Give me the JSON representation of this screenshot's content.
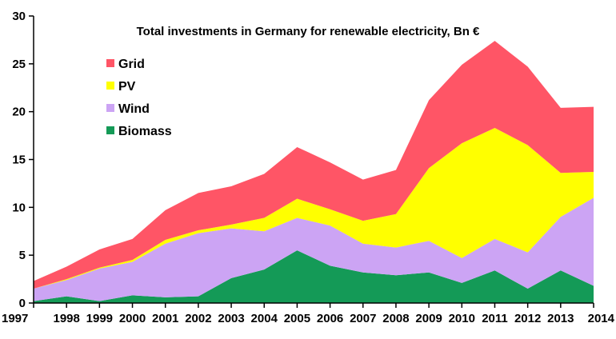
{
  "chart_data": {
    "type": "area",
    "stacked": true,
    "title": "Total investments in Germany for renewable electricity, Bn €",
    "x": [
      "1997",
      "1998",
      "1999",
      "2000",
      "2001",
      "2002",
      "2003",
      "2004",
      "2005",
      "2006",
      "2007",
      "2008",
      "2009",
      "2010",
      "2011",
      "2012",
      "2013",
      "2014"
    ],
    "ylim": [
      0,
      30
    ],
    "yticks": [
      "0",
      "5",
      "10",
      "15",
      "20",
      "25",
      "30"
    ],
    "grid": false,
    "legend_position": "top-left",
    "series": [
      {
        "name": "Biomass",
        "color": "#149a57",
        "values": [
          0.2,
          0.7,
          0.2,
          0.8,
          0.6,
          0.7,
          2.6,
          3.5,
          5.5,
          3.9,
          3.2,
          2.9,
          3.2,
          2.1,
          3.4,
          1.5,
          3.4,
          1.8
        ]
      },
      {
        "name": "Wind",
        "color": "#cca4f4",
        "values": [
          1.3,
          1.7,
          3.4,
          3.5,
          5.6,
          6.6,
          5.2,
          4.0,
          3.4,
          4.2,
          3.0,
          2.9,
          3.3,
          2.6,
          3.3,
          3.8,
          5.6,
          9.2
        ]
      },
      {
        "name": "PV",
        "color": "#ffff00",
        "values": [
          0.0,
          0.1,
          0.1,
          0.2,
          0.4,
          0.3,
          0.4,
          1.4,
          2.0,
          1.7,
          2.4,
          3.5,
          7.6,
          12.0,
          11.6,
          11.2,
          4.6,
          2.7
        ]
      },
      {
        "name": "Grid",
        "color": "#ff5566",
        "values": [
          0.8,
          1.3,
          1.9,
          2.2,
          3.1,
          3.9,
          4.0,
          4.6,
          5.4,
          4.9,
          4.3,
          4.6,
          7.1,
          8.2,
          9.1,
          8.2,
          6.8,
          6.8
        ]
      }
    ],
    "legend_order": [
      "Grid",
      "PV",
      "Wind",
      "Biomass"
    ]
  }
}
